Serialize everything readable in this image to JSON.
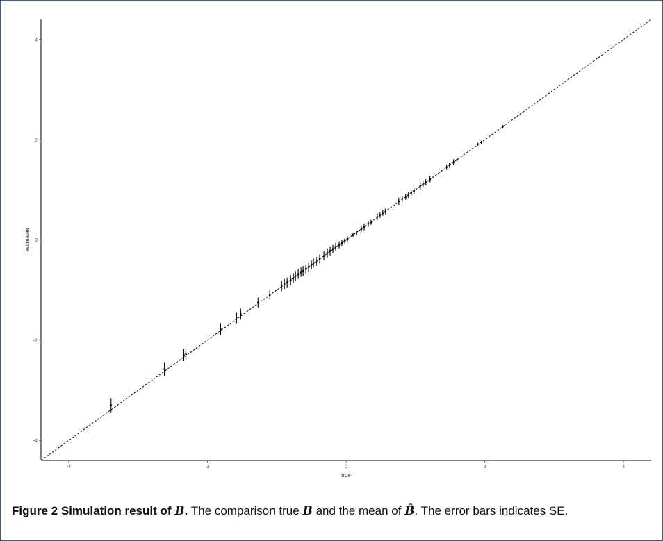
{
  "chart_data": {
    "type": "scatter",
    "xlabel": "true",
    "ylabel": "estimates",
    "xlim": [
      -4.4,
      4.4
    ],
    "ylim": [
      -4.4,
      4.4
    ],
    "xticks": [
      -4,
      -2,
      0,
      2,
      4
    ],
    "yticks": [
      -4,
      -2,
      0,
      2,
      4
    ],
    "xtick_labels": [
      "-4",
      "-2",
      "0",
      "2",
      "4"
    ],
    "ytick_labels": [
      "-4",
      "-2",
      "0",
      "2",
      "4"
    ],
    "grid": false,
    "reference_line": {
      "slope": 1,
      "intercept": 0,
      "style": "dashed"
    },
    "points": [
      {
        "x": -3.39,
        "y": -3.3,
        "se": 0.14
      },
      {
        "x": -2.62,
        "y": -2.58,
        "se": 0.14
      },
      {
        "x": -2.34,
        "y": -2.3,
        "se": 0.12
      },
      {
        "x": -2.31,
        "y": -2.28,
        "se": 0.12
      },
      {
        "x": -1.81,
        "y": -1.78,
        "se": 0.12
      },
      {
        "x": -1.58,
        "y": -1.55,
        "se": 0.11
      },
      {
        "x": -1.52,
        "y": -1.48,
        "se": 0.11
      },
      {
        "x": -1.27,
        "y": -1.25,
        "se": 0.1
      },
      {
        "x": -1.1,
        "y": -1.1,
        "se": 0.09
      },
      {
        "x": -0.93,
        "y": -0.92,
        "se": 0.1
      },
      {
        "x": -0.89,
        "y": -0.88,
        "se": 0.1
      },
      {
        "x": -0.85,
        "y": -0.85,
        "se": 0.1
      },
      {
        "x": -0.8,
        "y": -0.8,
        "se": 0.1
      },
      {
        "x": -0.76,
        "y": -0.76,
        "se": 0.1
      },
      {
        "x": -0.73,
        "y": -0.72,
        "se": 0.1
      },
      {
        "x": -0.69,
        "y": -0.68,
        "se": 0.1
      },
      {
        "x": -0.65,
        "y": -0.64,
        "se": 0.1
      },
      {
        "x": -0.62,
        "y": -0.62,
        "se": 0.1
      },
      {
        "x": -0.58,
        "y": -0.58,
        "se": 0.09
      },
      {
        "x": -0.54,
        "y": -0.54,
        "se": 0.09
      },
      {
        "x": -0.5,
        "y": -0.5,
        "se": 0.09
      },
      {
        "x": -0.47,
        "y": -0.46,
        "se": 0.09
      },
      {
        "x": -0.43,
        "y": -0.43,
        "se": 0.09
      },
      {
        "x": -0.38,
        "y": -0.38,
        "se": 0.09
      },
      {
        "x": -0.32,
        "y": -0.32,
        "se": 0.09
      },
      {
        "x": -0.27,
        "y": -0.26,
        "se": 0.09
      },
      {
        "x": -0.23,
        "y": -0.22,
        "se": 0.09
      },
      {
        "x": -0.19,
        "y": -0.18,
        "se": 0.08
      },
      {
        "x": -0.15,
        "y": -0.14,
        "se": 0.08
      },
      {
        "x": -0.1,
        "y": -0.1,
        "se": 0.07
      },
      {
        "x": -0.06,
        "y": -0.06,
        "se": 0.06
      },
      {
        "x": -0.02,
        "y": -0.02,
        "se": 0.05
      },
      {
        "x": 0.02,
        "y": 0.02,
        "se": 0.05
      },
      {
        "x": 0.1,
        "y": 0.1,
        "se": 0.04
      },
      {
        "x": 0.15,
        "y": 0.14,
        "se": 0.05
      },
      {
        "x": 0.22,
        "y": 0.22,
        "se": 0.06
      },
      {
        "x": 0.26,
        "y": 0.26,
        "se": 0.07
      },
      {
        "x": 0.32,
        "y": 0.32,
        "se": 0.06
      },
      {
        "x": 0.36,
        "y": 0.35,
        "se": 0.05
      },
      {
        "x": 0.45,
        "y": 0.46,
        "se": 0.07
      },
      {
        "x": 0.49,
        "y": 0.5,
        "se": 0.06
      },
      {
        "x": 0.53,
        "y": 0.54,
        "se": 0.06
      },
      {
        "x": 0.57,
        "y": 0.57,
        "se": 0.06
      },
      {
        "x": 0.76,
        "y": 0.77,
        "se": 0.07
      },
      {
        "x": 0.81,
        "y": 0.82,
        "se": 0.06
      },
      {
        "x": 0.86,
        "y": 0.86,
        "se": 0.06
      },
      {
        "x": 0.9,
        "y": 0.9,
        "se": 0.06
      },
      {
        "x": 0.94,
        "y": 0.94,
        "se": 0.06
      },
      {
        "x": 0.98,
        "y": 0.98,
        "se": 0.06
      },
      {
        "x": 1.07,
        "y": 1.08,
        "se": 0.07
      },
      {
        "x": 1.11,
        "y": 1.11,
        "se": 0.06
      },
      {
        "x": 1.15,
        "y": 1.15,
        "se": 0.06
      },
      {
        "x": 1.21,
        "y": 1.21,
        "se": 0.06
      },
      {
        "x": 1.45,
        "y": 1.45,
        "se": 0.05
      },
      {
        "x": 1.49,
        "y": 1.49,
        "se": 0.05
      },
      {
        "x": 1.55,
        "y": 1.55,
        "se": 0.06
      },
      {
        "x": 1.6,
        "y": 1.6,
        "se": 0.05
      },
      {
        "x": 1.9,
        "y": 1.91,
        "se": 0.03
      },
      {
        "x": 1.95,
        "y": 1.95,
        "se": 0.03
      },
      {
        "x": 2.26,
        "y": 2.26,
        "se": 0.03
      }
    ]
  },
  "caption": {
    "label": "Figure 2",
    "title_text": "Simulation result of",
    "title_symbol": "B",
    "title_end": ".",
    "body_1": "The comparison true",
    "body_symbol_1": "B",
    "body_2": "and the mean of",
    "body_symbol_2": "B̂",
    "body_3": ". The error bars indicates SE."
  }
}
